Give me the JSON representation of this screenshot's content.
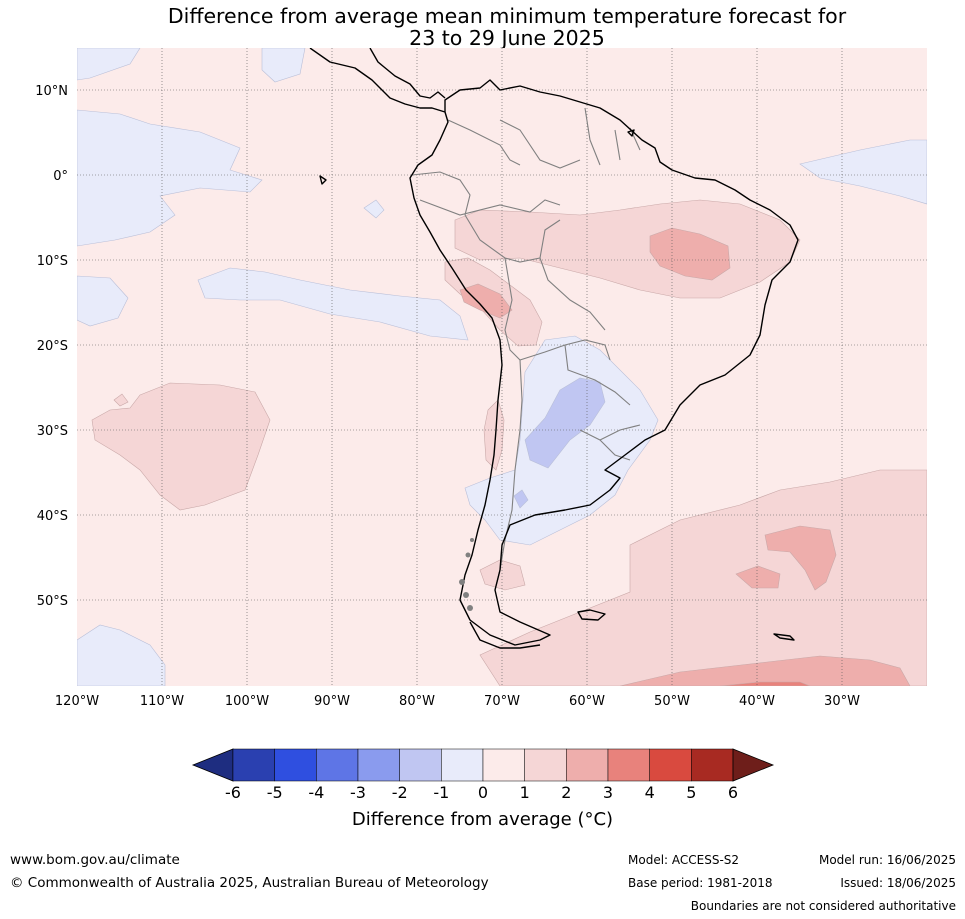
{
  "title": {
    "line1": "Difference from average mean minimum temperature forecast for",
    "line2": "23 to 29 June 2025"
  },
  "map": {
    "latitude_labels": [
      "10°N",
      "0°",
      "10°S",
      "20°S",
      "30°S",
      "40°S",
      "50°S"
    ],
    "longitude_labels": [
      "120°W",
      "110°W",
      "100°W",
      "90°W",
      "80°W",
      "70°W",
      "60°W",
      "50°W",
      "40°W",
      "30°W"
    ],
    "colors": {
      "background_anomaly_0_to_1": "#fcebea",
      "anomaly_1_to_2": "#f5d6d6",
      "anomaly_2_to_3": "#eeaeac",
      "anomaly_3_to_4": "#e8827c",
      "anomaly_minus1_to_0": "#e8ebfa",
      "anomaly_minus2_to_minus1": "#c0c6f2",
      "coastline": "#000000",
      "borders": "#808080",
      "gridlines": "#555555"
    }
  },
  "colorbar": {
    "ticks": [
      "-6",
      "-5",
      "-4",
      "-3",
      "-2",
      "-1",
      "0",
      "1",
      "2",
      "3",
      "4",
      "5",
      "6"
    ],
    "colors": [
      "#1e2d80",
      "#2a40b0",
      "#2f4fe0",
      "#5e75e6",
      "#8a9bee",
      "#c0c6f2",
      "#e8ebfa",
      "#fcebea",
      "#f5d6d6",
      "#eeaeac",
      "#e8827c",
      "#d94a3f",
      "#a82a22",
      "#6e1e1a"
    ],
    "label": "Difference from average (°C)"
  },
  "footer": {
    "url": "www.bom.gov.au/climate",
    "copyright": "© Commonwealth of Australia 2025, Australian Bureau of Meteorology",
    "model": "Model: ACCESS-S2",
    "base_period": "Base period: 1981-2018",
    "model_run": "Model run: 16/06/2025",
    "issued": "Issued: 18/06/2025",
    "disclaimer": "Boundaries are not considered authoritative"
  }
}
